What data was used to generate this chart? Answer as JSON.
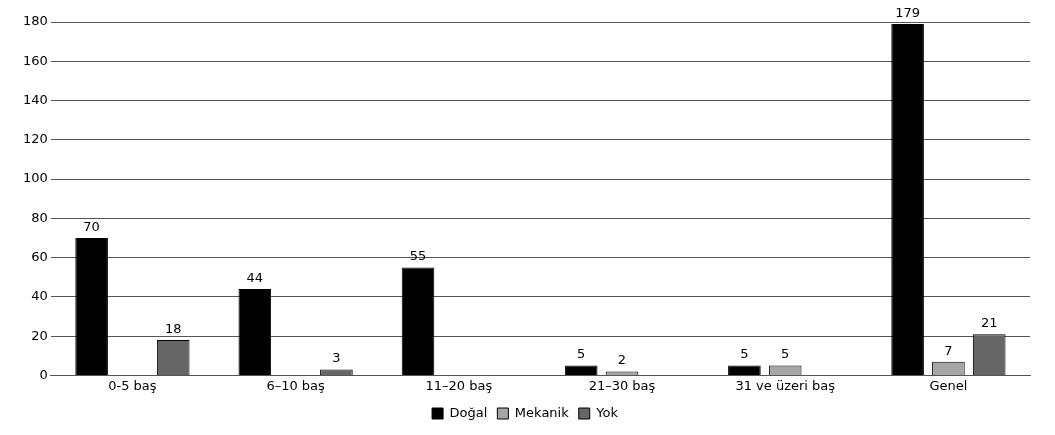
{
  "chart_data": {
    "type": "bar",
    "categories": [
      "0-5 baş",
      "6–10 baş",
      "11–20 baş",
      "21–30 baş",
      "31 ve üzeri baş",
      "Genel"
    ],
    "series": [
      {
        "name": "Doğal",
        "color": "#000000",
        "values": [
          70,
          44,
          55,
          5,
          5,
          179
        ],
        "value_labels": [
          "70",
          "44",
          "55",
          "5",
          "5",
          "179"
        ]
      },
      {
        "name": "Mekanik",
        "color": "#a6a6a6",
        "values": [
          0,
          0,
          0,
          2,
          5,
          7
        ],
        "value_labels": [
          null,
          null,
          null,
          "2",
          "5",
          "7"
        ]
      },
      {
        "name": "Yok",
        "color": "#666666",
        "values": [
          18,
          3,
          0,
          0,
          0,
          21
        ],
        "value_labels": [
          "18",
          "3",
          null,
          null,
          null,
          "21"
        ]
      }
    ],
    "ylim": [
      0,
      180
    ],
    "yticks": [
      0,
      20,
      40,
      60,
      80,
      100,
      120,
      140,
      160,
      180
    ],
    "grid": "y",
    "legend": "bottom"
  }
}
